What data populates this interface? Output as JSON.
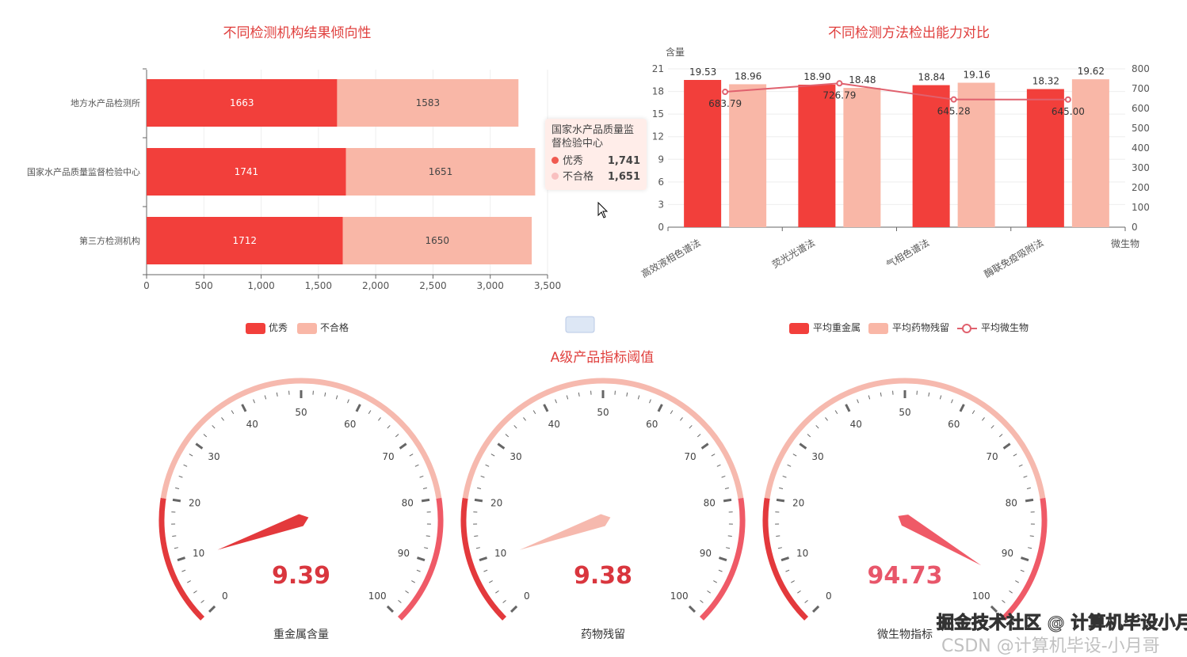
{
  "colors": {
    "red": "#f23f3b",
    "pink": "#f9b7a7",
    "line": "#e0616e",
    "title": "#e0403e",
    "gaugeLow": "#e3393c",
    "gaugeMid": "#f6b9ae",
    "gaugeHigh": "#ef5a67",
    "valueRed": "#d9363e",
    "valuePink": "#e8566a"
  },
  "chart_data": [
    {
      "type": "bar",
      "orientation": "horizontal",
      "stacked": true,
      "title": "不同检测机构结果倾向性",
      "categories": [
        "地方水产品检测所",
        "国家水产品质量监督检验中心",
        "第三方检测机构"
      ],
      "series": [
        {
          "name": "优秀",
          "values": [
            1663,
            1741,
            1712
          ]
        },
        {
          "name": "不合格",
          "values": [
            1583,
            1651,
            1650
          ]
        }
      ],
      "xlim": [
        0,
        3500
      ],
      "xticks": [
        "0",
        "500",
        "1,000",
        "1,500",
        "2,000",
        "2,500",
        "3,000",
        "3,500"
      ],
      "legend": "bottom",
      "tooltip": {
        "title": "国家水产品质量监督检验中心",
        "rows": [
          {
            "name": "优秀",
            "value": "1,741"
          },
          {
            "name": "不合格",
            "value": "1,651"
          }
        ]
      }
    },
    {
      "type": "bar+line",
      "title": "不同检测方法检出能力对比",
      "categories": [
        "高效液相色谱法",
        "荧光光谱法",
        "气相色谱法",
        "酶联免疫吸附法"
      ],
      "ylabel": "含量",
      "y2label": "微生物",
      "ylim": [
        0,
        21
      ],
      "y2lim": [
        0,
        800
      ],
      "yticks": [
        "0",
        "3",
        "6",
        "9",
        "12",
        "15",
        "18",
        "21"
      ],
      "y2ticks": [
        "0",
        "100",
        "200",
        "300",
        "400",
        "500",
        "600",
        "700",
        "800"
      ],
      "series": [
        {
          "name": "平均重金属",
          "type": "bar",
          "values": [
            19.53,
            18.9,
            18.84,
            18.32
          ],
          "labels": [
            "19.53",
            "18.90",
            "18.84",
            "18.32"
          ]
        },
        {
          "name": "平均药物残留",
          "type": "bar",
          "values": [
            18.96,
            18.48,
            19.16,
            19.62
          ],
          "labels": [
            "18.96",
            "18.48",
            "19.16",
            "19.62"
          ]
        },
        {
          "name": "平均微生物",
          "type": "line",
          "axis": "right",
          "values": [
            683.79,
            726.79,
            645.28,
            645.0
          ],
          "labels": [
            "683.79",
            "726.79",
            "645.28",
            "645.00"
          ]
        }
      ],
      "legend": "bottom"
    },
    {
      "type": "gauge",
      "title": "A级产品指标阈值",
      "min": 0,
      "max": 100,
      "ticks": [
        "0",
        "10",
        "20",
        "30",
        "40",
        "50",
        "60",
        "70",
        "80",
        "90",
        "100"
      ],
      "bands": [
        [
          0.2,
          "low"
        ],
        [
          0.8,
          "mid"
        ],
        [
          1,
          "high"
        ]
      ],
      "gauges": [
        {
          "name": "重金属含量",
          "value": 9.39,
          "display": "9.39"
        },
        {
          "name": "药物残留",
          "value": 9.38,
          "display": "9.38"
        },
        {
          "name": "微生物指标",
          "value": 94.73,
          "display": "94.73"
        }
      ]
    }
  ],
  "watermark": {
    "juejin": "掘金技术社区 @ 计算机毕设小月哥",
    "csdn": "CSDN @计算机毕设-小月哥"
  }
}
